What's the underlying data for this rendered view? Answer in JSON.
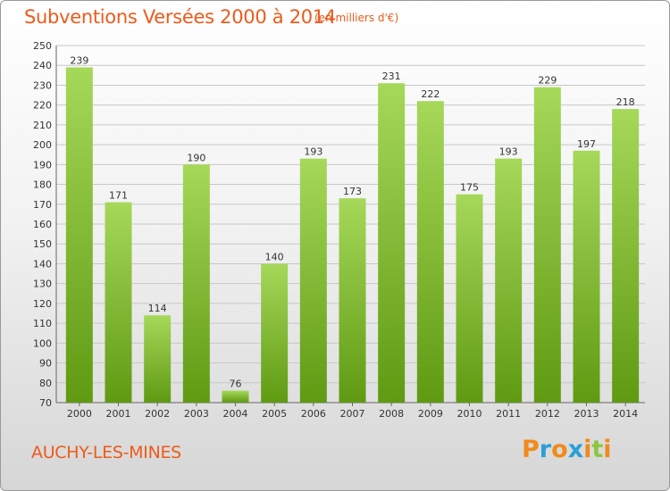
{
  "title": "Subventions Versées 2000 à 2014",
  "subtitle": "(en milliers d'€)",
  "commune": "AUCHY-LES-MINES",
  "brand": {
    "letters": [
      "P",
      "r",
      "o",
      "x",
      "i",
      "t",
      "i"
    ],
    "colors": [
      "#f08a1c",
      "#2a9fd8",
      "#f08a1c",
      "#2a9fd8",
      "#f08a1c",
      "#8cc63f",
      "#f08a1c"
    ]
  },
  "colors": {
    "title": "#ee5a1a",
    "bar_light": "#a6d85a",
    "bar_dark": "#5f9a12",
    "grid": "#c8c8c8"
  },
  "chart_data": {
    "type": "bar",
    "title": "Subventions Versées 2000 à 2014",
    "subtitle": "(en milliers d'€)",
    "xlabel": "",
    "ylabel": "",
    "categories": [
      "2000",
      "2001",
      "2002",
      "2003",
      "2004",
      "2005",
      "2006",
      "2007",
      "2008",
      "2009",
      "2010",
      "2011",
      "2012",
      "2013",
      "2014"
    ],
    "values": [
      239,
      171,
      114,
      190,
      76,
      140,
      193,
      173,
      231,
      222,
      175,
      193,
      229,
      197,
      218
    ],
    "ylim": [
      70,
      250
    ],
    "yticks": [
      70,
      80,
      90,
      100,
      110,
      120,
      130,
      140,
      150,
      160,
      170,
      180,
      190,
      200,
      210,
      220,
      230,
      240,
      250
    ],
    "grid": true,
    "legend": "none"
  }
}
